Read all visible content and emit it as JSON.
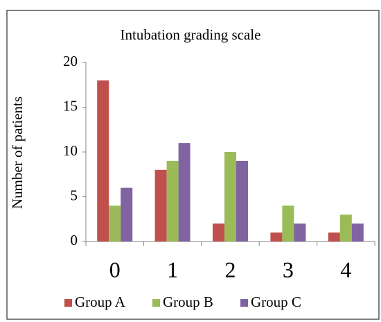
{
  "chart_data": {
    "type": "bar",
    "title": "Intubation grading scale",
    "y_label": "Number  of patients",
    "categories": [
      "0",
      "1",
      "2",
      "3",
      "4"
    ],
    "series": [
      {
        "name": "Group A",
        "color": "#c0504d",
        "values": [
          18,
          8,
          2,
          1,
          1
        ]
      },
      {
        "name": "Group B",
        "color": "#9bbb59",
        "values": [
          4,
          9,
          10,
          4,
          3
        ]
      },
      {
        "name": "Group C",
        "color": "#8064a2",
        "values": [
          6,
          11,
          9,
          2,
          2
        ]
      }
    ],
    "ylim": [
      0,
      20
    ],
    "yticks": [
      0,
      5,
      10,
      15,
      20
    ],
    "grid": false,
    "legend": "bottom"
  }
}
